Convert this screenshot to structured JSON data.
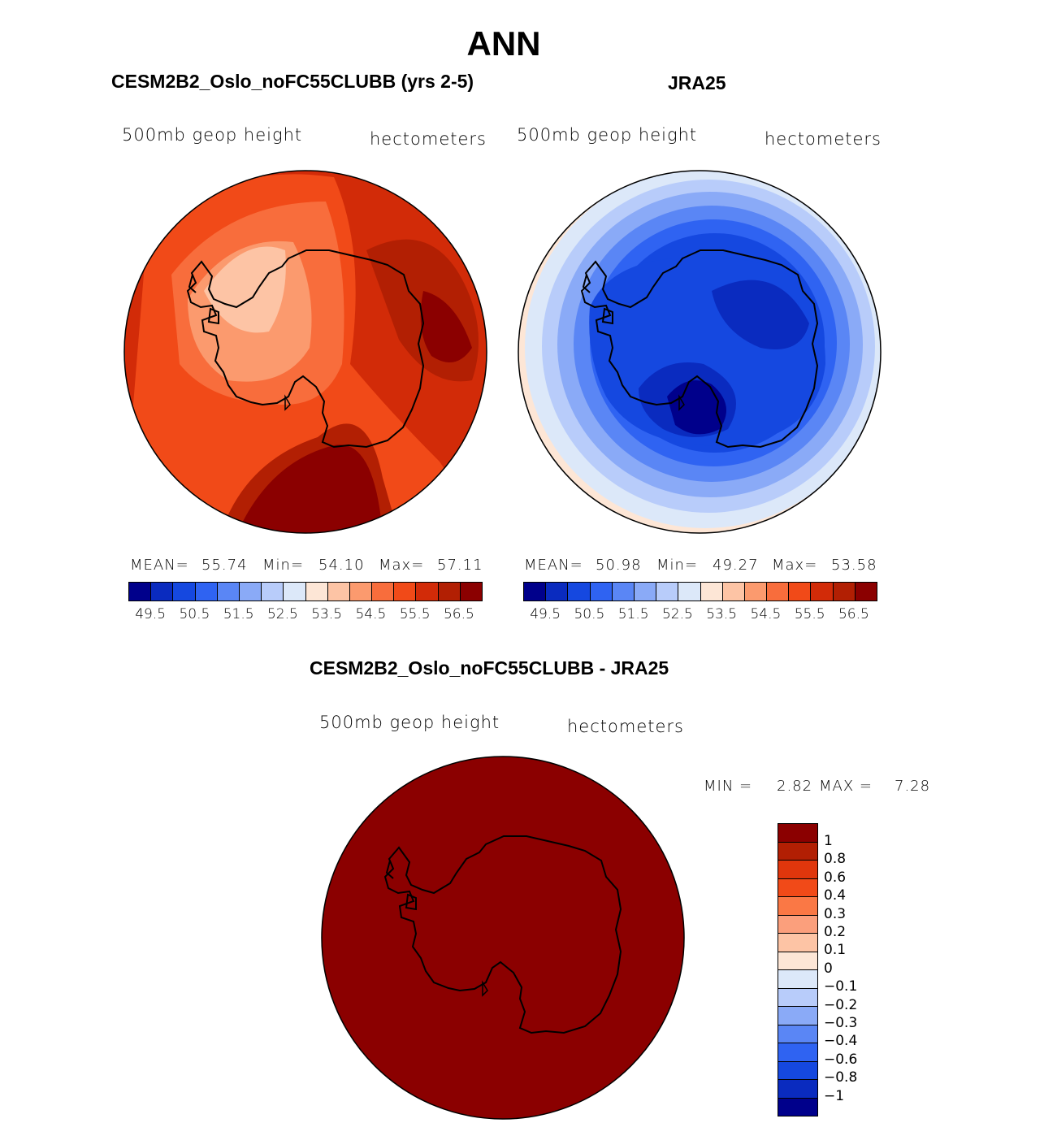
{
  "title": "ANN",
  "panels": {
    "model": {
      "title": "CESM2B2_Oslo_noFC55CLUBB (yrs 2-5)",
      "variable": "500mb geop height",
      "units": "hectometers",
      "mean_label": "MEAN=",
      "mean": "55.74",
      "min_label": "Min=",
      "min": "54.10",
      "max_label": "Max=",
      "max": "57.11"
    },
    "obs": {
      "title": "JRA25",
      "variable": "500mb geop height",
      "units": "hectometers",
      "mean_label": "MEAN=",
      "mean": "50.98",
      "min_label": "Min=",
      "min": "49.27",
      "max_label": "Max=",
      "max": "53.58"
    },
    "diff": {
      "title": "CESM2B2_Oslo_noFC55CLUBB - JRA25",
      "variable": "500mb geop height",
      "units": "hectometers",
      "min_label": "MIN =",
      "min": "2.82",
      "max_label": "MAX =",
      "max": "7.28"
    }
  },
  "colorbar_levels": [
    "49.5",
    "50.5",
    "51.5",
    "52.5",
    "53.5",
    "54.5",
    "55.5",
    "56.5"
  ],
  "diff_levels": [
    "1",
    "0.8",
    "0.6",
    "0.4",
    "0.3",
    "0.2",
    "0.1",
    "0",
    "−0.1",
    "−0.2",
    "−0.3",
    "−0.4",
    "−0.6",
    "−0.8",
    "−1"
  ],
  "colors": {
    "palette": [
      "#00008b",
      "#0a2bbf",
      "#1548e0",
      "#2f63f2",
      "#5a86f5",
      "#8aaaf7",
      "#b8ccfa",
      "#dce8f9",
      "#fde6d6",
      "#fdc4a5",
      "#fb9a6e",
      "#f86d3c",
      "#f14a18",
      "#d22b08",
      "#b21f03",
      "#8b0000"
    ],
    "diff_palette": [
      "#8b0000",
      "#b21f03",
      "#e0360c",
      "#f14a18",
      "#fa7845",
      "#fb9f7c",
      "#fdc4a5",
      "#fde6d6",
      "#dce8f9",
      "#b8ccfa",
      "#8aaaf7",
      "#5a86f5",
      "#2f63f2",
      "#1548e0",
      "#0a2bbf",
      "#00008b"
    ]
  }
}
